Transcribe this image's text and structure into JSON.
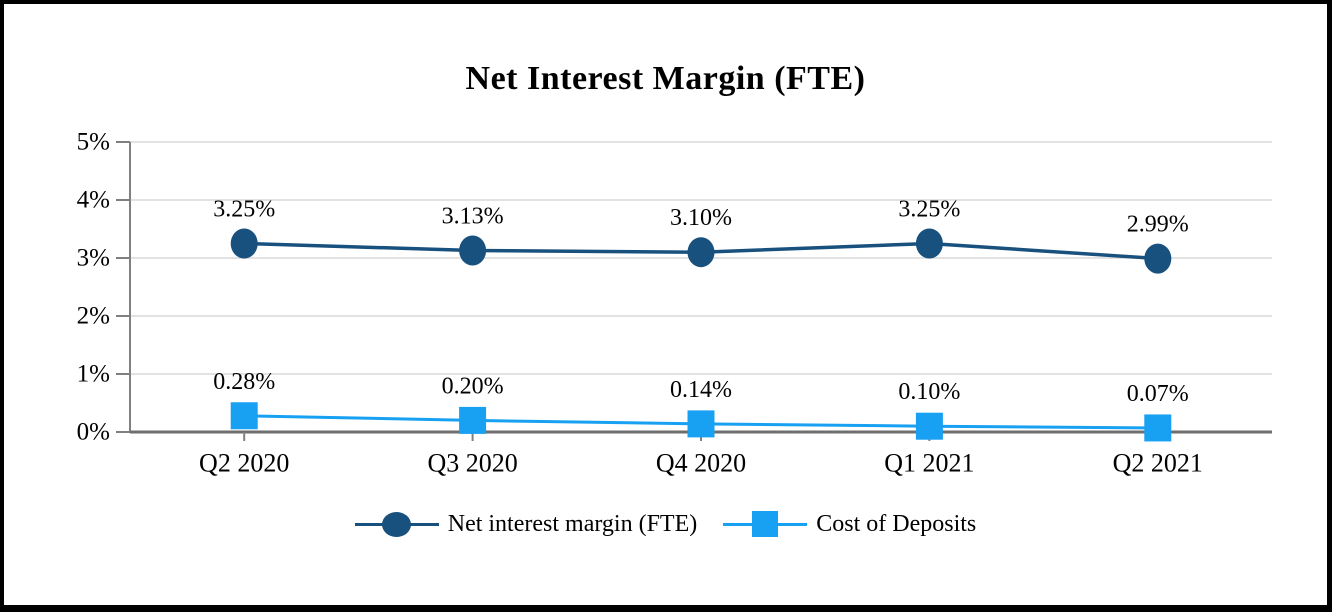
{
  "chart_data": {
    "type": "line",
    "title": "Net Interest Margin (FTE)",
    "categories": [
      "Q2 2020",
      "Q3 2020",
      "Q4 2020",
      "Q1 2021",
      "Q2 2021"
    ],
    "series": [
      {
        "name": "Net interest margin (FTE)",
        "values": [
          3.25,
          3.13,
          3.1,
          3.25,
          2.99
        ],
        "labels": [
          "3.25%",
          "3.13%",
          "3.10%",
          "3.25%",
          "2.99%"
        ],
        "color": "#18507E",
        "marker": "circle"
      },
      {
        "name": "Cost of Deposits",
        "values": [
          0.28,
          0.2,
          0.14,
          0.1,
          0.07
        ],
        "labels": [
          "0.28%",
          "0.20%",
          "0.14%",
          "0.10%",
          "0.07%"
        ],
        "color": "#18A0F2",
        "marker": "square"
      }
    ],
    "ylim": [
      0,
      5
    ],
    "yticks": [
      0,
      1,
      2,
      3,
      4,
      5
    ],
    "ytick_labels": [
      "0%",
      "1%",
      "2%",
      "3%",
      "4%",
      "5%"
    ],
    "grid": true,
    "grid_color": "#D9D9D9",
    "axis_color": "#808080",
    "x_axis_color": "#6E6E6E",
    "text_color": "#000000",
    "legend_position": "bottom",
    "data_labels": true
  }
}
